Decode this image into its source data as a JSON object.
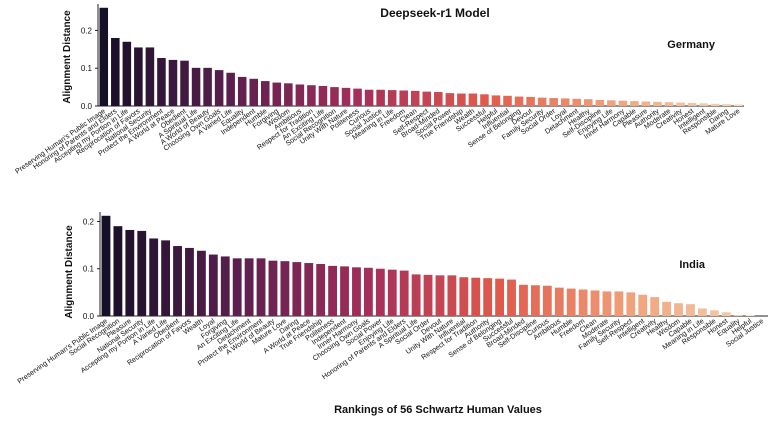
{
  "figure": {
    "title": "Deepseek-r1 Model",
    "xlabel": "Rankings of 56 Schwartz Human Values"
  },
  "chart_data": [
    {
      "type": "bar",
      "label": "Germany",
      "ylabel": "Alignment Distance",
      "ylim": [
        0,
        0.27
      ],
      "yticks": [
        "0.0",
        "0.1",
        "0.2"
      ],
      "colormap": [
        "#160f28",
        "#5a1f4f",
        "#a52e5a",
        "#e05a4c",
        "#f0a27a",
        "#f5d5b6"
      ],
      "categories": [
        "Preserving Human's Public Image",
        "Honoring of Parents and Elders",
        "Accepting my Portion in Life",
        "Reciprocation of Favors",
        "National Security",
        "Protect the Environment",
        "A World at Peace",
        "Obedient",
        "A Spiritual Life",
        "A World of Beauty",
        "Choosing Own Goals",
        "A Varied Life",
        "Equality",
        "Independent",
        "Humble",
        "Forgiving",
        "Wisdom",
        "Ambitious",
        "Respect for Tradition",
        "An Exciting Life",
        "Social Recognition",
        "Unity With Nature",
        "Politeness",
        "Curious",
        "Social Justice",
        "Meaning in Life",
        "Freedom",
        "Clean",
        "Self-Respect",
        "Broad-Minded",
        "Social Power",
        "True Friendship",
        "Wealth",
        "Successful",
        "Helpful",
        "Influential",
        "Sense of Belonging",
        "Devout",
        "Family Security",
        "Social Order",
        "Loyal",
        "Detachment",
        "Healthy",
        "Self-Discipline",
        "Enjoying Life",
        "Inner Harmony",
        "Capable",
        "Pleasure",
        "Authority",
        "Moderate",
        "Creativity",
        "Honest",
        "Intelligent",
        "Responsible",
        "Daring",
        "Mature Love"
      ],
      "values": [
        0.26,
        0.18,
        0.17,
        0.155,
        0.155,
        0.127,
        0.122,
        0.12,
        0.101,
        0.101,
        0.095,
        0.088,
        0.077,
        0.072,
        0.066,
        0.062,
        0.06,
        0.057,
        0.055,
        0.053,
        0.05,
        0.048,
        0.046,
        0.043,
        0.043,
        0.042,
        0.041,
        0.04,
        0.038,
        0.037,
        0.034,
        0.033,
        0.033,
        0.031,
        0.028,
        0.027,
        0.025,
        0.024,
        0.022,
        0.021,
        0.02,
        0.019,
        0.018,
        0.016,
        0.015,
        0.014,
        0.013,
        0.012,
        0.011,
        0.01,
        0.009,
        0.008,
        0.007,
        0.006,
        0.005,
        0.004
      ]
    },
    {
      "type": "bar",
      "label": "India",
      "ylabel": "Alignment Distance",
      "ylim": [
        0,
        0.22
      ],
      "yticks": [
        "0.0",
        "0.1",
        "0.2"
      ],
      "colormap": [
        "#160f28",
        "#5a1f4f",
        "#a52e5a",
        "#e05a4c",
        "#f0a27a",
        "#f5d5b6"
      ],
      "categories": [
        "Preserving Human's Public Image",
        "Social Recognition",
        "Pleasure",
        "National Security",
        "Accepting my Portion in Life",
        "A Varied Life",
        "Obedient",
        "Reciprocation of Favors",
        "Wealth",
        "Loyal",
        "Forgiving",
        "An Exciting Life",
        "Detachment",
        "Protect the Environment",
        "A World of Beauty",
        "Mature Love",
        "Daring",
        "A World at Peace",
        "True Friendship",
        "Politeness",
        "Independent",
        "Inner Harmony",
        "Choosing Own Goals",
        "Social Power",
        "Enjoying Life",
        "Honoring of Parents and Elders",
        "A Spiritual Life",
        "Social Order",
        "Devout",
        "Unity With Nature",
        "Influential",
        "Respect for Tradition",
        "Authority",
        "Sense of Belonging",
        "Successful",
        "Broad-Minded",
        "Self-Discipline",
        "Curious",
        "Ambitious",
        "Humble",
        "Freedom",
        "Clean",
        "Moderate",
        "Family Security",
        "Self-Respect",
        "Intelligent",
        "Creativity",
        "Healthy",
        "Wisdom",
        "Capable",
        "Meaning in Life",
        "Responsible",
        "Honest",
        "Equality",
        "Helpful",
        "Social Justice"
      ],
      "values": [
        0.212,
        0.19,
        0.182,
        0.18,
        0.164,
        0.16,
        0.148,
        0.144,
        0.138,
        0.13,
        0.126,
        0.122,
        0.122,
        0.122,
        0.117,
        0.116,
        0.114,
        0.112,
        0.11,
        0.106,
        0.105,
        0.103,
        0.102,
        0.1,
        0.098,
        0.096,
        0.088,
        0.087,
        0.086,
        0.086,
        0.082,
        0.081,
        0.08,
        0.079,
        0.077,
        0.066,
        0.065,
        0.064,
        0.06,
        0.058,
        0.056,
        0.054,
        0.052,
        0.052,
        0.05,
        0.045,
        0.04,
        0.03,
        0.027,
        0.025,
        0.016,
        0.012,
        0.008,
        0.002,
        0.001,
        0.0
      ]
    }
  ]
}
